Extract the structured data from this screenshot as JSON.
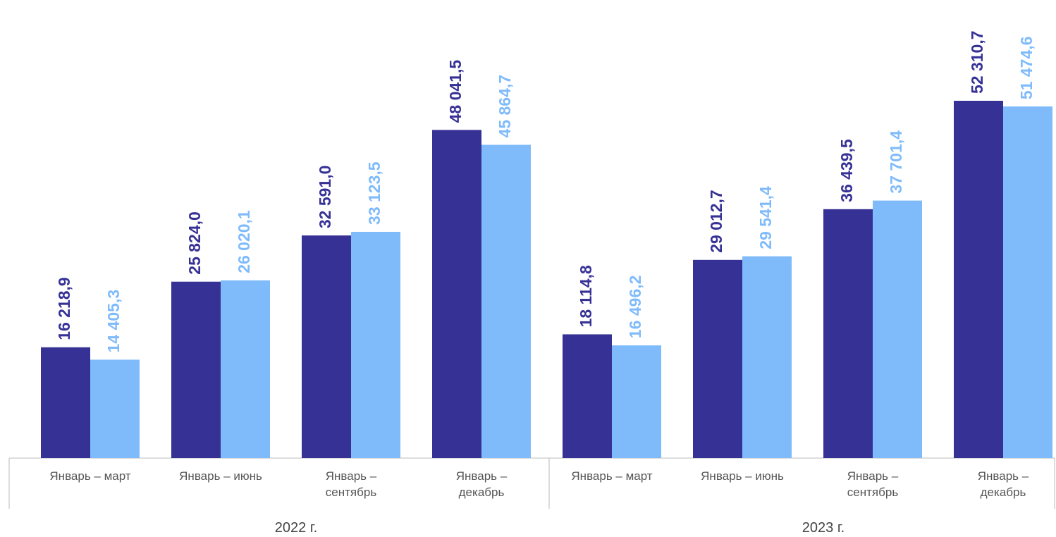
{
  "chart_data": {
    "type": "bar",
    "categories": [
      "Январь – март",
      "Январь – июнь",
      "Январь – сентябрь",
      "Январь – декабрь",
      "Январь – март",
      "Январь – июнь",
      "Январь – сентябрь",
      "Январь – декабрь"
    ],
    "groups": [
      "2022 г.",
      "2023 г."
    ],
    "series": [
      {
        "color": "#363195",
        "values": [
          16218.9,
          25824.0,
          32591.0,
          48041.5,
          18114.8,
          29012.7,
          36439.5,
          52310.7
        ],
        "value_labels": [
          "16 218,9",
          "25 824,0",
          "32 591,0",
          "48 041,5",
          "18 114,8",
          "29 012,7",
          "36 439,5",
          "52 310,7"
        ]
      },
      {
        "color": "#7fbbfb",
        "values": [
          14405.3,
          26020.1,
          33123.5,
          45864.7,
          16496.2,
          29541.4,
          37701.4,
          51474.6
        ],
        "value_labels": [
          "14 405,3",
          "26 020,1",
          "33 123,5",
          "45 864,7",
          "16 496,2",
          "29 541,4",
          "37 701,4",
          "51 474,6"
        ]
      }
    ]
  }
}
